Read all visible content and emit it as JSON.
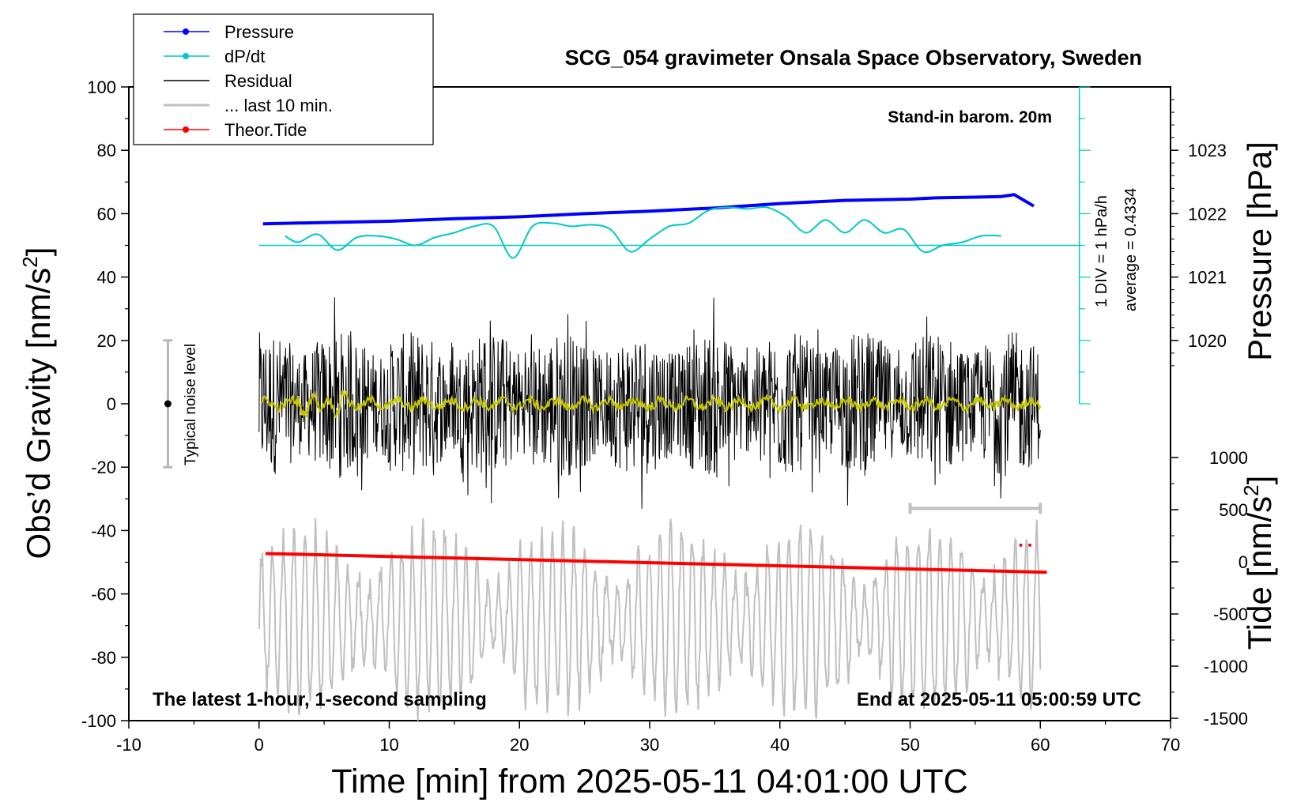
{
  "chart_data": {
    "type": "line",
    "title": "SCG_054 gravimeter Onsala Space Observatory, Sweden",
    "xlabel": "Time [min] from 2025-05-11 04:01:00 UTC",
    "ylabel_left": "Obs’d Gravity [nm/s",
    "ylabel_right_top": "Pressure [hPa]",
    "ylabel_right_bottom": "Tide [nm/s",
    "superscript": "2",
    "xlim": [
      -10,
      70
    ],
    "ylim_left": [
      -100,
      100
    ],
    "x_ticks": [
      "-10",
      "0",
      "10",
      "20",
      "30",
      "40",
      "50",
      "60",
      "70"
    ],
    "y_ticks_left": [
      "100",
      "80",
      "60",
      "40",
      "20",
      "0",
      "-20",
      "-40",
      "-60",
      "-80",
      "-100"
    ],
    "pressure_ticks": [
      "1023",
      "1022",
      "1021",
      "1020"
    ],
    "tide_ticks": [
      "1000",
      "500",
      "0",
      "-500",
      "-1000",
      "-1500"
    ],
    "annotations": {
      "barometer": "Stand-in barom. 20m",
      "div": "1 DIV = 1 hPa/h",
      "average": "average = 0.4334",
      "noise": "Typical noise level",
      "bottom_left": "The latest 1-hour, 1-second sampling",
      "bottom_right": "End at 2025-05-11 05:00:59 UTC"
    },
    "legend": {
      "placement": "top-left",
      "entries": [
        {
          "label": "Pressure",
          "color": "#0000ff",
          "marker": true
        },
        {
          "label": "dP/dt",
          "color": "#00c8c8",
          "marker": true
        },
        {
          "label": "Residual",
          "color": "#000000",
          "marker": false
        },
        {
          "label": "... last 10 min.",
          "color": "#c0c0c0",
          "marker": false
        },
        {
          "label": "Theor.Tide",
          "color": "#ff0000",
          "marker": true
        }
      ]
    },
    "series": [
      {
        "name": "Pressure",
        "color": "#0000ff",
        "axis": "pressure_hPa",
        "x": [
          0.3,
          5,
          10,
          15,
          20,
          25,
          30,
          35,
          40,
          45,
          50,
          52,
          55,
          57,
          58,
          59.5
        ],
        "y": [
          1021.84,
          1021.86,
          1021.88,
          1021.92,
          1021.95,
          1022.0,
          1022.04,
          1022.09,
          1022.16,
          1022.21,
          1022.23,
          1022.25,
          1022.26,
          1022.27,
          1022.3,
          1022.12
        ]
      },
      {
        "name": "dP/dt",
        "color": "#00c8c8",
        "axis": "left_units",
        "x": [
          2,
          3,
          4.5,
          6,
          7.5,
          9,
          10.5,
          12,
          13.5,
          15,
          16.5,
          18,
          19.5,
          21,
          22.5,
          24,
          25.5,
          27,
          28.5,
          30,
          31.5,
          33,
          34.5,
          36,
          37.5,
          39,
          40.5,
          42,
          43.5,
          45,
          46.5,
          48,
          49.5,
          51,
          52.5,
          54,
          55.5,
          57
        ],
        "y": [
          53,
          51,
          53.5,
          48.5,
          52.5,
          53,
          52,
          50,
          52.5,
          54,
          56,
          56,
          46,
          56,
          57,
          56,
          56.5,
          55,
          48,
          52,
          56,
          57,
          61,
          62,
          61.5,
          62,
          59,
          54,
          58,
          54,
          58,
          54,
          55,
          48,
          50,
          51,
          53,
          53
        ]
      },
      {
        "name": "Residual",
        "color": "#000000",
        "axis": "left_units",
        "x": [
          0,
          60
        ],
        "y_range": [
          -35,
          35
        ],
        "note_values": [
          0
        ]
      },
      {
        "name": "... last 10 min.",
        "color": "#c0c0c0",
        "axis": "left_units",
        "x": [
          0,
          60
        ],
        "y_center": -68,
        "y_range": [
          -100,
          -23
        ]
      },
      {
        "name": "Theor.Tide",
        "color": "#ff0000",
        "axis": "tide",
        "x": [
          0.5,
          60.5
        ],
        "y": [
          80,
          -100
        ]
      }
    ],
    "dpdt_reference_level": 50,
    "noise_bar": {
      "x": -7,
      "center": 0,
      "range": [
        -20,
        20
      ]
    },
    "window_bar": {
      "x": [
        50,
        60
      ],
      "y": -33
    }
  }
}
